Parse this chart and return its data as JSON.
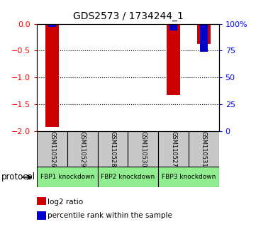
{
  "title": "GDS2573 / 1734244_1",
  "samples": [
    "GSM110526",
    "GSM110529",
    "GSM110528",
    "GSM110530",
    "GSM110527",
    "GSM110531"
  ],
  "log2_ratio": [
    -1.92,
    0.0,
    0.0,
    0.0,
    -1.32,
    -0.38
  ],
  "percentile_rank": [
    3.0,
    0.0,
    0.0,
    0.0,
    6.0,
    26.0
  ],
  "ylim_left": [
    -2.0,
    0.0
  ],
  "ylim_right": [
    0.0,
    100.0
  ],
  "yticks_left": [
    0.0,
    -0.5,
    -1.0,
    -1.5,
    -2.0
  ],
  "yticks_right": [
    0,
    25,
    50,
    75,
    100
  ],
  "bar_color_red": "#CC0000",
  "bar_color_blue": "#0000CC",
  "sample_box_color": "#C8C8C8",
  "protocol_box_color": "#90EE90",
  "bar_width": 0.45,
  "legend_red_label": "log2 ratio",
  "legend_blue_label": "percentile rank within the sample",
  "protocol_label": "protocol",
  "proto_labels": [
    "FBP1 knockdown",
    "FBP2 knockdown",
    "FBP3 knockdown"
  ],
  "proto_ranges": [
    [
      0,
      1
    ],
    [
      2,
      3
    ],
    [
      4,
      5
    ]
  ]
}
